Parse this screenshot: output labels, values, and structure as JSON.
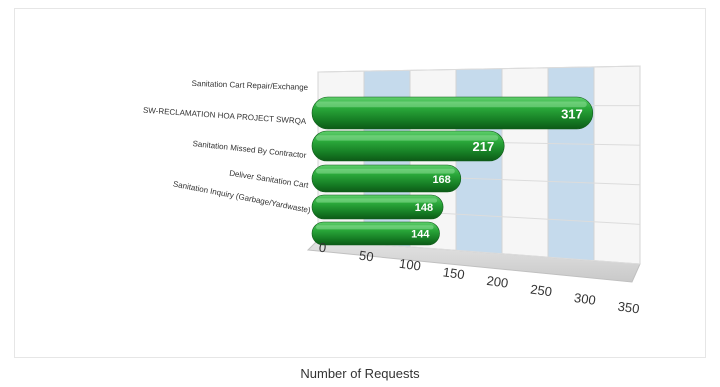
{
  "chart_data": {
    "type": "bar",
    "orientation": "horizontal",
    "style": "3d-cylinder",
    "categories": [
      "Sanitation Cart Repair/Exchange",
      "SW-RECLAMATION HOA PROJECT SWRQA",
      "Sanitation Missed By Contractor",
      "Deliver Sanitation Cart",
      "Sanitation Inquiry (Garbage/Yardwaste)"
    ],
    "values": [
      317,
      217,
      168,
      148,
      144
    ],
    "value_labels": [
      "317",
      "217",
      "168",
      "148",
      "144"
    ],
    "xlabel": "Number of Requests",
    "ylabel": "",
    "xlim": [
      0,
      350
    ],
    "xticks": [
      "0",
      "50",
      "100",
      "150",
      "200",
      "250",
      "300",
      "350"
    ],
    "grid": true,
    "bar_color": "#1f8f2d",
    "highlight_color": "#6fd07a",
    "band_color": "#bcd5ea"
  }
}
